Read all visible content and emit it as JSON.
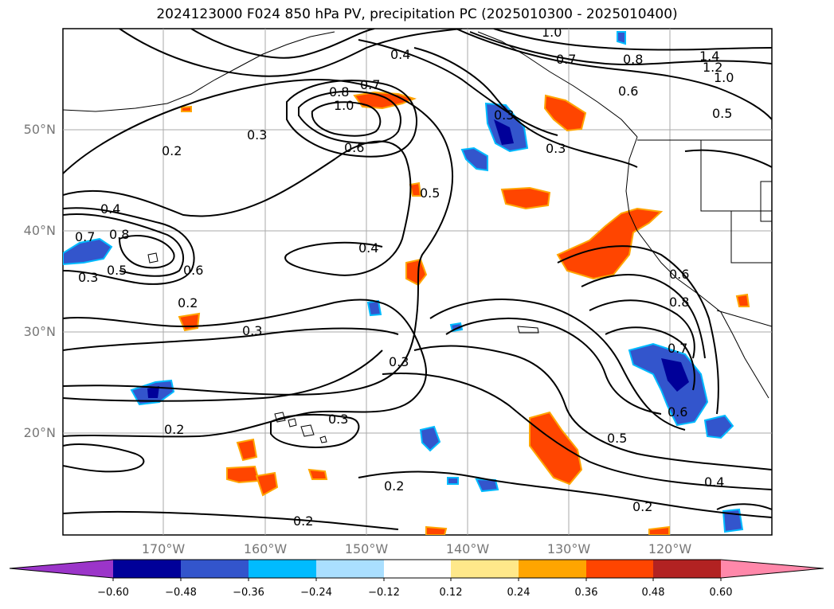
{
  "title": "2024123000 F024 850 hPa PV, precipitation PC (2025010300 - 2025010400)",
  "map": {
    "lat_labels": [
      "50°N",
      "40°N",
      "30°N",
      "20°N"
    ],
    "lon_labels": [
      "170°W",
      "160°W",
      "150°W",
      "140°W",
      "130°W",
      "120°W"
    ],
    "contour_labels": [
      "1.0",
      "0.7",
      "0.8",
      "1.4",
      "1.2",
      "1.0",
      "0.4",
      "0.7",
      "0.8",
      "1.0",
      "0.6",
      "0.5",
      "0.3",
      "0.2",
      "0.4",
      "0.7",
      "0.8",
      "0.5",
      "0.3",
      "0.6",
      "0.4",
      "0.2",
      "0.3",
      "0.3",
      "0.6",
      "0.8",
      "0.7",
      "0.6",
      "0.5",
      "0.4",
      "0.3",
      "0.2",
      "0.2",
      "0.2",
      "0.2",
      "0.3",
      "0.5",
      "0.3",
      "0.6"
    ]
  },
  "colorbar": {
    "tick_labels": [
      "−0.60",
      "−0.48",
      "−0.36",
      "−0.24",
      "−0.12",
      "0.12",
      "0.24",
      "0.36",
      "0.48",
      "0.60"
    ],
    "colors": [
      "#9b35c9",
      "#000099",
      "#3355cc",
      "#00bbff",
      "#aadfff",
      "#ffffff",
      "#ffe88a",
      "#ffa500",
      "#ff4500",
      "#b22222",
      "#ff88aa"
    ]
  }
}
